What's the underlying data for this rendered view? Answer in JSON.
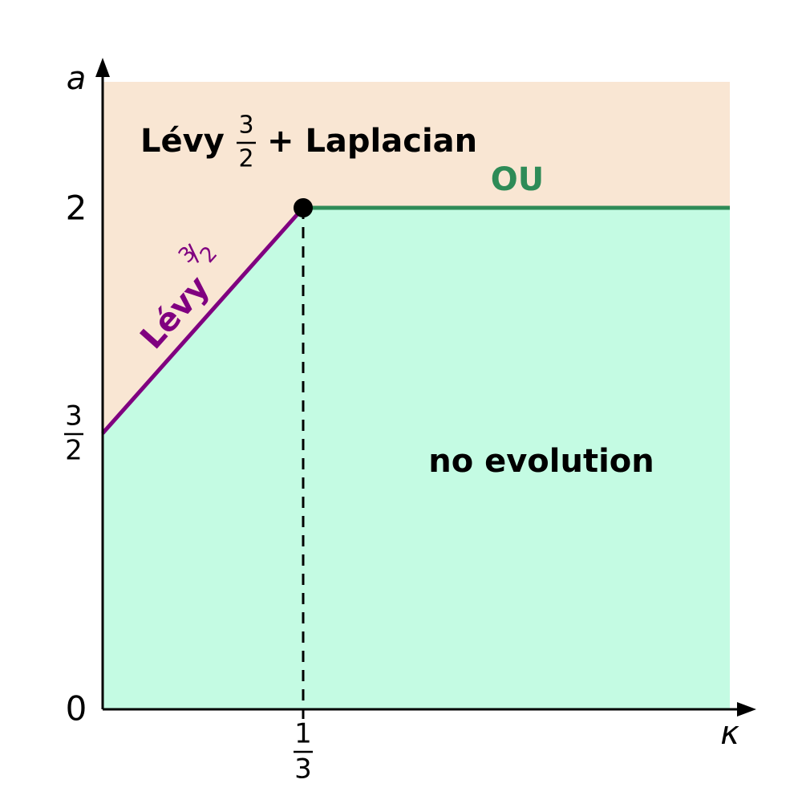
{
  "axes": {
    "y_label": "a",
    "x_label": "κ",
    "y_ticks": [
      "0",
      {
        "numerator": "3",
        "denominator": "2"
      },
      "2"
    ],
    "x_ticks": [
      {
        "numerator": "1",
        "denominator": "3"
      }
    ]
  },
  "regions": {
    "upper": {
      "text": "Lévy",
      "fraction": {
        "numerator": "3",
        "denominator": "2"
      },
      "suffix": "+ Laplacian"
    },
    "lower": "no evolution"
  },
  "lines": {
    "slope": {
      "text": "Lévy",
      "fraction": {
        "numerator": "3",
        "denominator": "2"
      }
    },
    "flat": "OU"
  }
}
